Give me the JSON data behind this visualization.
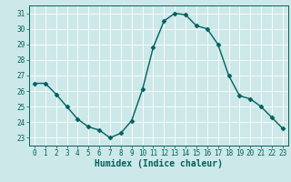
{
  "x": [
    0,
    1,
    2,
    3,
    4,
    5,
    6,
    7,
    8,
    9,
    10,
    11,
    12,
    13,
    14,
    15,
    16,
    17,
    18,
    19,
    20,
    21,
    22,
    23
  ],
  "y": [
    26.5,
    26.5,
    25.8,
    25.0,
    24.2,
    23.7,
    23.5,
    23.0,
    23.3,
    24.1,
    26.1,
    28.8,
    30.5,
    31.0,
    30.9,
    30.2,
    30.0,
    29.0,
    27.0,
    25.7,
    25.5,
    25.0,
    24.3,
    23.6
  ],
  "line_color": "#006060",
  "marker": "D",
  "markersize": 2.5,
  "linewidth": 1.0,
  "xlabel": "Humidex (Indice chaleur)",
  "xlabel_fontsize": 7,
  "ylim": [
    22.5,
    31.5
  ],
  "xlim": [
    -0.5,
    23.5
  ],
  "yticks": [
    23,
    24,
    25,
    26,
    27,
    28,
    29,
    30,
    31
  ],
  "xticks": [
    0,
    1,
    2,
    3,
    4,
    5,
    6,
    7,
    8,
    9,
    10,
    11,
    12,
    13,
    14,
    15,
    16,
    17,
    18,
    19,
    20,
    21,
    22,
    23
  ],
  "bg_color": "#cde8e8",
  "grid_color": "#ffffff",
  "tick_color": "#006060",
  "label_color": "#006060",
  "spine_color": "#006060"
}
